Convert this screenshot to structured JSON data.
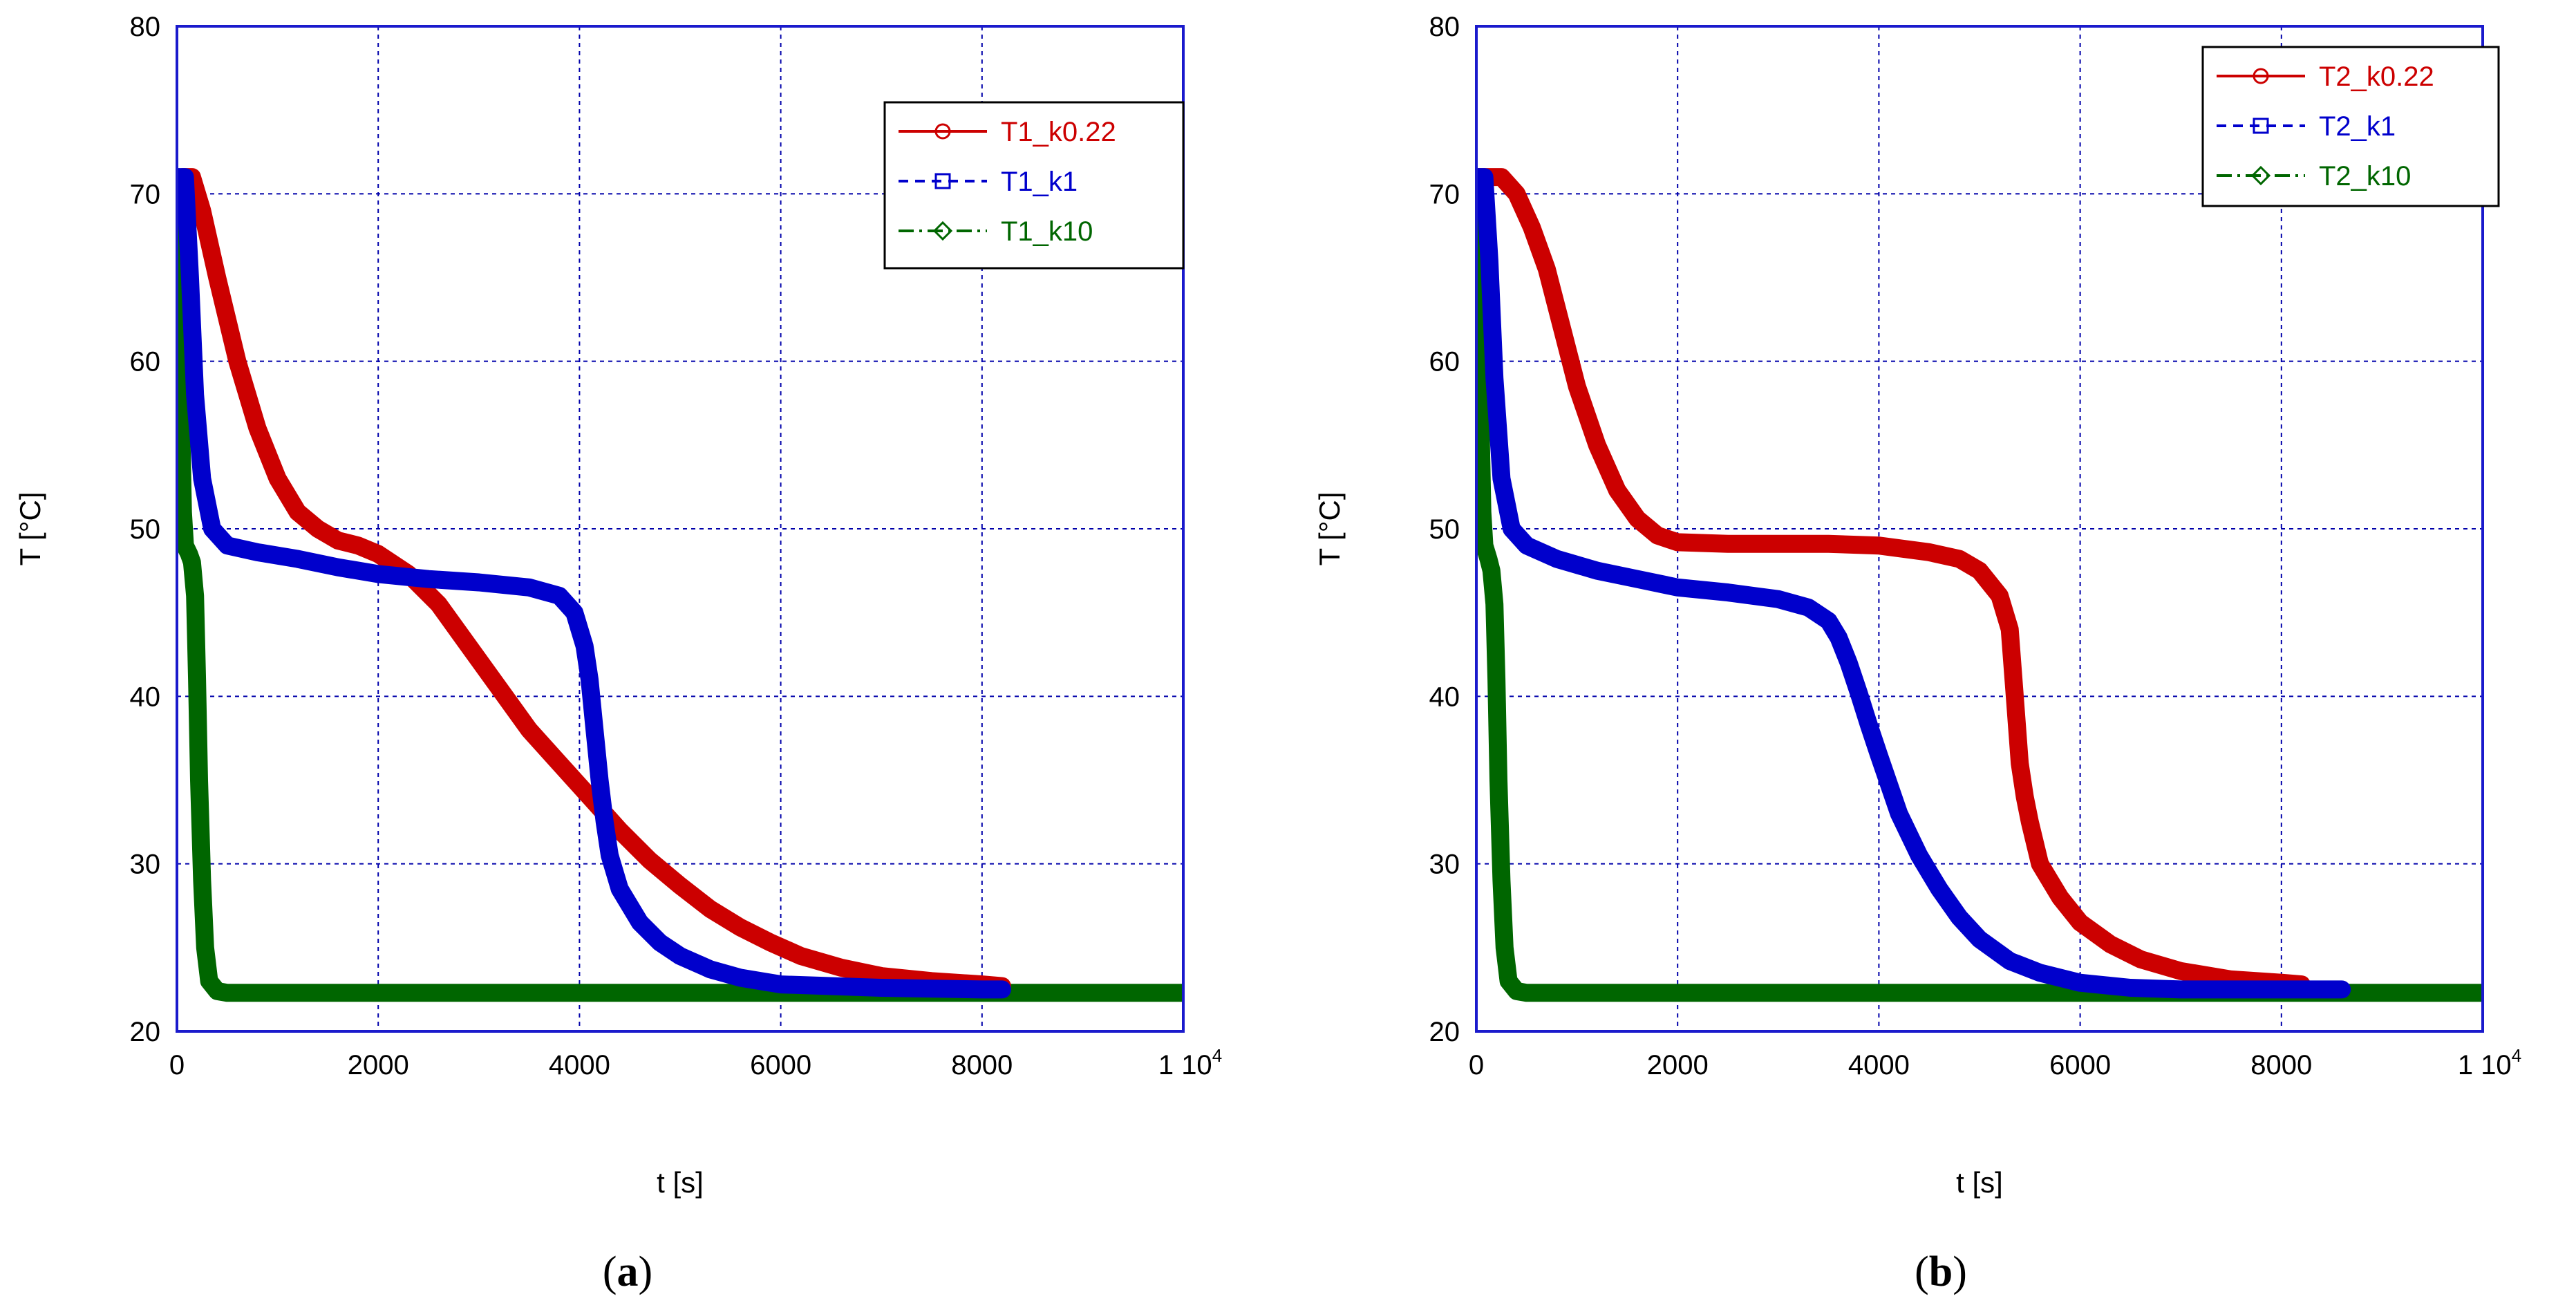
{
  "chart_data": [
    {
      "type": "line",
      "panel_label": {
        "open": "(",
        "letter": "a",
        "close": ")"
      },
      "xlabel": "t [s]",
      "ylabel": "T [°C]",
      "xlim": [
        0,
        10000
      ],
      "ylim": [
        20,
        80
      ],
      "x_ticks": [
        {
          "value": 0,
          "label": "0"
        },
        {
          "value": 2000,
          "label": "2000"
        },
        {
          "value": 4000,
          "label": "4000"
        },
        {
          "value": 6000,
          "label": "6000"
        },
        {
          "value": 8000,
          "label": "8000"
        }
      ],
      "x_last_tick": {
        "value": 10000,
        "base": "1 10",
        "exp": "4"
      },
      "y_ticks": [
        20,
        30,
        40,
        50,
        60,
        70,
        80
      ],
      "grid": true,
      "legend_position": "top-right",
      "series": [
        {
          "name": "T1_k0.22",
          "color": "#cc0000",
          "marker": "circle-icon",
          "line_style": "solid",
          "x": [
            0,
            60,
            150,
            250,
            400,
            600,
            800,
            1000,
            1200,
            1400,
            1600,
            1800,
            2000,
            2300,
            2600,
            2900,
            3200,
            3500,
            3800,
            4100,
            4400,
            4700,
            5000,
            5300,
            5600,
            5900,
            6200,
            6600,
            7000,
            7500,
            8000,
            8200
          ],
          "y": [
            70,
            71,
            71,
            69,
            65,
            60,
            56,
            53,
            51,
            50,
            49.3,
            49,
            48.5,
            47.3,
            45.5,
            43,
            40.5,
            38,
            36,
            34,
            32,
            30.2,
            28.7,
            27.3,
            26.2,
            25.3,
            24.5,
            23.8,
            23.3,
            23,
            22.8,
            22.7
          ]
        },
        {
          "name": "T1_k1",
          "color": "#0000cc",
          "marker": "square-icon",
          "line_style": "dashed",
          "x": [
            0,
            30,
            80,
            130,
            180,
            250,
            350,
            500,
            800,
            1200,
            1600,
            2000,
            2500,
            3000,
            3500,
            3800,
            3950,
            4050,
            4100,
            4150,
            4200,
            4250,
            4300,
            4400,
            4600,
            4800,
            5000,
            5300,
            5600,
            6000,
            7000,
            8000,
            8200
          ],
          "y": [
            70,
            71,
            71,
            65,
            58,
            53,
            50,
            49,
            48.6,
            48.2,
            47.7,
            47.3,
            47,
            46.8,
            46.5,
            46,
            45,
            43,
            41,
            38,
            35,
            32.5,
            30.5,
            28.5,
            26.5,
            25.3,
            24.5,
            23.7,
            23.2,
            22.8,
            22.6,
            22.5,
            22.5
          ]
        },
        {
          "name": "T1_k10",
          "color": "#006600",
          "marker": "diamond-icon",
          "line_style": "dash-dot",
          "x": [
            0,
            10,
            25,
            40,
            60,
            80,
            120,
            150,
            180,
            200,
            220,
            250,
            280,
            320,
            400,
            500,
            700,
            1000,
            2000,
            4000,
            6000,
            8000,
            10000
          ],
          "y": [
            64,
            71,
            66,
            57,
            51,
            49,
            48.5,
            48,
            46,
            41,
            35,
            29,
            25,
            23,
            22.4,
            22.3,
            22.3,
            22.3,
            22.3,
            22.3,
            22.3,
            22.3,
            22.3
          ]
        }
      ]
    },
    {
      "type": "line",
      "panel_label": {
        "open": "(",
        "letter": "b",
        "close": ")"
      },
      "xlabel": "t [s]",
      "ylabel": "T [°C]",
      "xlim": [
        0,
        10000
      ],
      "ylim": [
        20,
        80
      ],
      "x_ticks": [
        {
          "value": 0,
          "label": "0"
        },
        {
          "value": 2000,
          "label": "2000"
        },
        {
          "value": 4000,
          "label": "4000"
        },
        {
          "value": 6000,
          "label": "6000"
        },
        {
          "value": 8000,
          "label": "8000"
        }
      ],
      "x_last_tick": {
        "value": 10000,
        "base": "1 10",
        "exp": "4"
      },
      "y_ticks": [
        20,
        30,
        40,
        50,
        60,
        70,
        80
      ],
      "grid": true,
      "legend_position": "top-right",
      "series": [
        {
          "name": "T2_k0.22",
          "color": "#cc0000",
          "marker": "circle-icon",
          "line_style": "solid",
          "x": [
            0,
            100,
            250,
            400,
            550,
            700,
            850,
            1000,
            1200,
            1400,
            1600,
            1800,
            2000,
            2500,
            3000,
            3500,
            4000,
            4500,
            4800,
            5000,
            5200,
            5300,
            5350,
            5400,
            5450,
            5500,
            5600,
            5800,
            6000,
            6300,
            6600,
            7000,
            7500,
            8000,
            8200
          ],
          "y": [
            71,
            71,
            71,
            70,
            68,
            65.5,
            62,
            58.5,
            55,
            52.3,
            50.6,
            49.6,
            49.2,
            49.1,
            49.1,
            49.1,
            49,
            48.6,
            48.2,
            47.5,
            46,
            44,
            40,
            36,
            34,
            32.5,
            30,
            28,
            26.5,
            25.2,
            24.3,
            23.6,
            23.1,
            22.9,
            22.8
          ]
        },
        {
          "name": "T2_k1",
          "color": "#0000cc",
          "marker": "square-icon",
          "line_style": "dashed",
          "x": [
            0,
            30,
            80,
            130,
            180,
            250,
            350,
            500,
            800,
            1200,
            1600,
            2000,
            2500,
            3000,
            3300,
            3500,
            3600,
            3700,
            3800,
            3900,
            4000,
            4200,
            4400,
            4600,
            4800,
            5000,
            5300,
            5600,
            6000,
            6500,
            7000,
            8000,
            8600
          ],
          "y": [
            70,
            71,
            71,
            66,
            59,
            53,
            50,
            49,
            48.2,
            47.5,
            47,
            46.5,
            46.2,
            45.8,
            45.3,
            44.5,
            43.5,
            42,
            40.2,
            38.3,
            36.5,
            33,
            30.5,
            28.5,
            26.8,
            25.5,
            24.2,
            23.5,
            22.9,
            22.6,
            22.5,
            22.5,
            22.5
          ]
        },
        {
          "name": "T2_k10",
          "color": "#006600",
          "marker": "diamond-icon",
          "line_style": "dash-dot",
          "x": [
            0,
            10,
            25,
            40,
            60,
            80,
            120,
            150,
            180,
            200,
            220,
            250,
            280,
            320,
            400,
            500,
            700,
            1000,
            2000,
            4000,
            6000,
            8000,
            10000
          ],
          "y": [
            64,
            71,
            66,
            57,
            51,
            49,
            48.2,
            47.5,
            45.5,
            41,
            35,
            29,
            25,
            23,
            22.4,
            22.3,
            22.3,
            22.3,
            22.3,
            22.3,
            22.3,
            22.3,
            22.3
          ]
        }
      ]
    }
  ]
}
